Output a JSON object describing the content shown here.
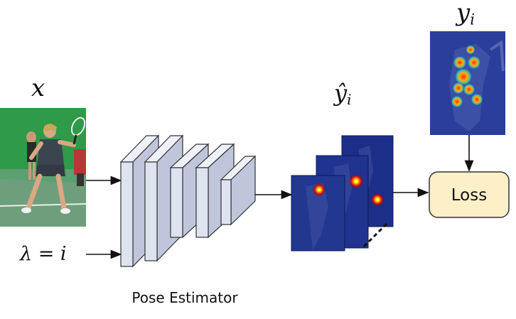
{
  "labels": {
    "input_var": "x",
    "lambda_eq": "λ = i",
    "pred_base": "ŷ",
    "pred_sub": "i",
    "target_base": "y",
    "target_sub": "i",
    "loss": "Loss",
    "estimator": "Pose Estimator"
  },
  "images": {
    "input": "tennis player photo",
    "prediction": "stacked predicted keypoint heatmaps",
    "target": "ground-truth keypoint heatmap overlay"
  },
  "colors": {
    "loss_fill": "#fdf0c8",
    "loss_stroke": "#333333",
    "block_fill": "#dfe3f0",
    "block_side": "#bfc6dc",
    "heatmap_bg": "#1b2f8a",
    "court_green": "#2f9a48"
  }
}
